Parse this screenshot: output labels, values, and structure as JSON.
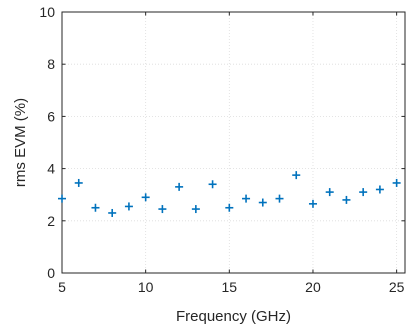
{
  "chart_data": {
    "type": "scatter",
    "title": "",
    "xlabel": "Frequency (GHz)",
    "ylabel": "rms EVM (%)",
    "xlim": [
      5,
      25.5
    ],
    "ylim": [
      0,
      10
    ],
    "xticks": [
      5,
      10,
      15,
      20,
      25
    ],
    "yticks": [
      0,
      2,
      4,
      6,
      8,
      10
    ],
    "grid": true,
    "marker": "+",
    "color": "#0072bd",
    "x": [
      5,
      6,
      7,
      8,
      9,
      10,
      11,
      12,
      13,
      14,
      15,
      16,
      17,
      18,
      19,
      20,
      21,
      22,
      23,
      24,
      25
    ],
    "y": [
      2.85,
      3.45,
      2.5,
      2.3,
      2.55,
      2.9,
      2.45,
      3.3,
      2.45,
      3.4,
      2.5,
      2.85,
      2.7,
      2.85,
      3.75,
      2.65,
      3.1,
      2.8,
      3.1,
      3.2,
      3.45
    ]
  }
}
